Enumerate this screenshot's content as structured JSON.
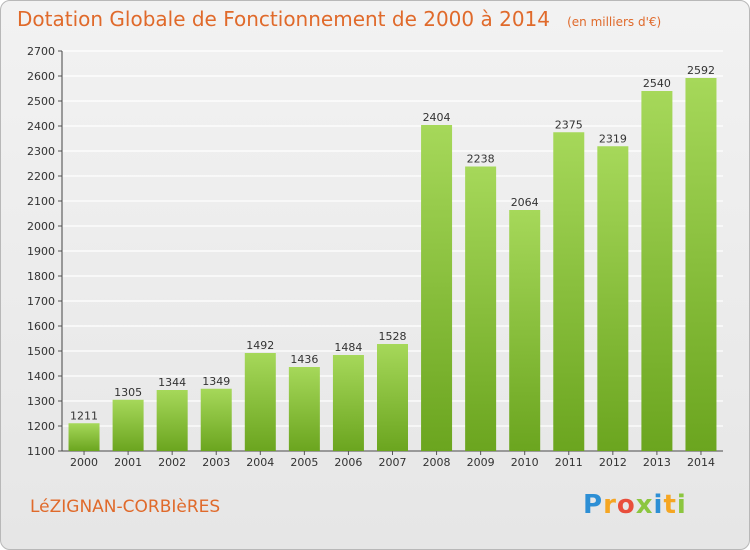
{
  "chart_data": {
    "type": "bar",
    "title": "Dotation Globale de Fonctionnement de 2000 à 2014",
    "unit": "(en milliers d'€)",
    "categories": [
      "2000",
      "2001",
      "2002",
      "2003",
      "2004",
      "2005",
      "2006",
      "2007",
      "2008",
      "2009",
      "2010",
      "2011",
      "2012",
      "2013",
      "2014"
    ],
    "values": [
      1211,
      1305,
      1344,
      1349,
      1492,
      1436,
      1484,
      1528,
      2404,
      2238,
      2064,
      2375,
      2319,
      2540,
      2592
    ],
    "ylim": [
      1100,
      2700
    ],
    "yticks": [
      1100,
      1200,
      1300,
      1400,
      1500,
      1600,
      1700,
      1800,
      1900,
      2000,
      2100,
      2200,
      2300,
      2400,
      2500,
      2600,
      2700
    ],
    "grid": true,
    "bar_color_top": "#a6d85a",
    "bar_color_bottom": "#6ba51f",
    "grid_color": "#ffffff"
  },
  "footer": {
    "commune": "LéZIGNAN-CORBIèRES",
    "logo_letters": [
      "P",
      "r",
      "o",
      "x",
      "i",
      "t",
      "i"
    ],
    "logo_colors": [
      "#2d8fd5",
      "#f5a623",
      "#e94e3c",
      "#8cc63f",
      "#2d8fd5",
      "#f5a623",
      "#8cc63f"
    ]
  }
}
